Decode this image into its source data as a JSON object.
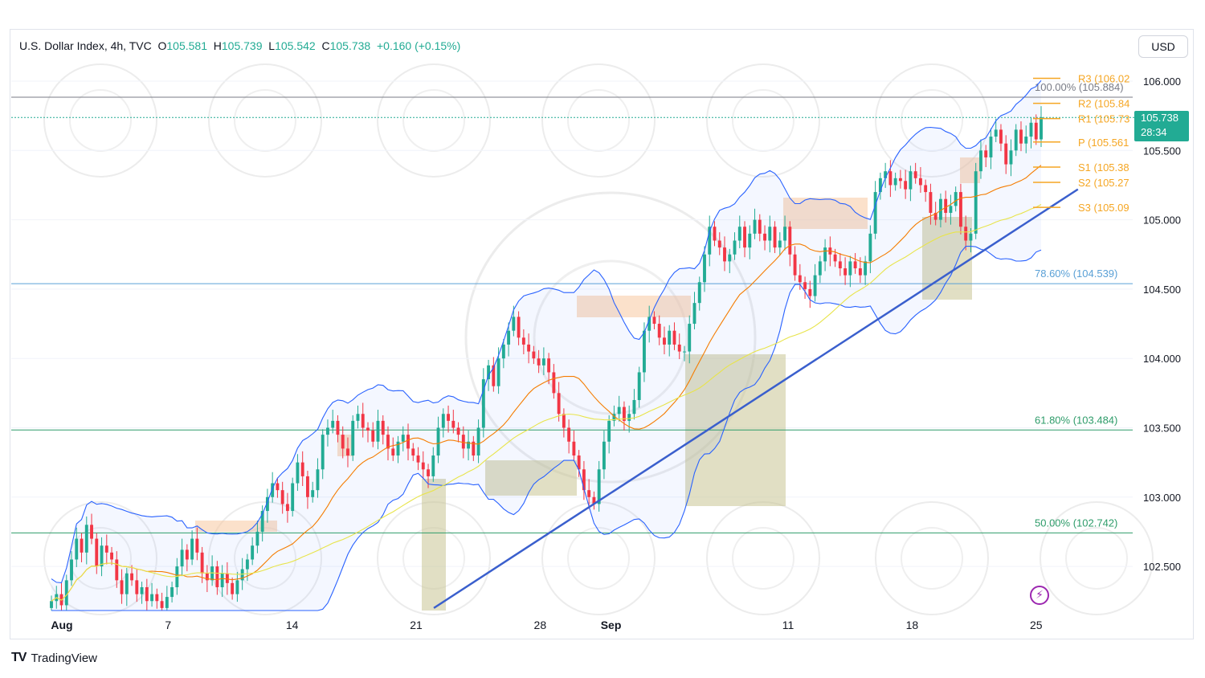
{
  "legend": {
    "symbol": "U.S. Dollar Index, 4h, TVC",
    "open_label": "O",
    "open": "105.581",
    "high_label": "H",
    "high": "105.739",
    "low_label": "L",
    "low": "105.542",
    "close_label": "C",
    "close": "105.738",
    "change": "+0.160 (+0.15%)"
  },
  "currency": "USD",
  "price_tag": {
    "price": "105.738",
    "countdown": "28:34"
  },
  "brand": {
    "logo": "TV",
    "name": "TradingView"
  },
  "colors": {
    "up": "#22ab94",
    "down": "#f23645",
    "bollinger": "#2962ff",
    "sma_orange": "#f57c00",
    "sma_yellow": "#e8e44a",
    "trend": "#3a5fcd",
    "fib_blue": "#5aa0d6",
    "fib_green": "#2e9c6a",
    "pivot": "#f5a623"
  },
  "icons": {
    "flash": "lightning-icon"
  },
  "chart_data": {
    "type": "candlestick",
    "title": "",
    "ylim": [
      102.2,
      106.2
    ],
    "y_ticks": [
      {
        "value": 106.0,
        "label": "106.000"
      },
      {
        "value": 105.5,
        "label": "105.500"
      },
      {
        "value": 105.0,
        "label": "105.000"
      },
      {
        "value": 104.5,
        "label": "104.500"
      },
      {
        "value": 104.0,
        "label": "104.000"
      },
      {
        "value": 103.5,
        "label": "103.500"
      },
      {
        "value": 103.0,
        "label": "103.000"
      },
      {
        "value": 102.5,
        "label": "102.500"
      }
    ],
    "x_ticks": [
      {
        "date": "2023-08-01",
        "label": "Aug",
        "bold": true
      },
      {
        "date": "2023-08-07",
        "label": "7",
        "bold": false
      },
      {
        "date": "2023-08-14",
        "label": "14",
        "bold": false
      },
      {
        "date": "2023-08-21",
        "label": "21",
        "bold": false
      },
      {
        "date": "2023-08-28",
        "label": "28",
        "bold": false
      },
      {
        "date": "2023-09-01",
        "label": "Sep",
        "bold": true
      },
      {
        "date": "2023-09-11",
        "label": "11",
        "bold": false
      },
      {
        "date": "2023-09-18",
        "label": "18",
        "bold": false
      },
      {
        "date": "2023-09-25",
        "label": "25",
        "bold": false
      }
    ],
    "fibonacci": [
      {
        "label": "100.00% (105.884)",
        "value": 105.884
      },
      {
        "label": "78.60% (104.539)",
        "value": 104.539
      },
      {
        "label": "61.80% (103.484)",
        "value": 103.484
      },
      {
        "label": "50.00% (102.742)",
        "value": 102.742
      }
    ],
    "pivots": [
      {
        "label": "R3 (106.02",
        "value": 106.02
      },
      {
        "label": "R2 (105.84",
        "value": 105.84
      },
      {
        "label": "R1 (105.73",
        "value": 105.73
      },
      {
        "label": "P (105.561",
        "value": 105.561
      },
      {
        "label": "S1 (105.38",
        "value": 105.38
      },
      {
        "label": "S2 (105.27",
        "value": 105.27
      },
      {
        "label": "S3 (105.09",
        "value": 105.09
      }
    ],
    "trendline": [
      {
        "date": "2023-08-22",
        "value": 102.2
      },
      {
        "date": "2023-09-26",
        "value": 105.22
      }
    ],
    "closes": [
      102.25,
      102.3,
      102.22,
      102.4,
      102.55,
      102.7,
      102.6,
      102.8,
      102.7,
      102.5,
      102.65,
      102.6,
      102.55,
      102.4,
      102.3,
      102.45,
      102.4,
      102.3,
      102.35,
      102.25,
      102.3,
      102.25,
      102.2,
      102.28,
      102.35,
      102.5,
      102.62,
      102.55,
      102.7,
      102.6,
      102.45,
      102.4,
      102.5,
      102.35,
      102.45,
      102.38,
      102.3,
      102.4,
      102.48,
      102.55,
      102.65,
      102.75,
      102.9,
      103.0,
      103.1,
      103.05,
      102.95,
      102.9,
      103.1,
      103.25,
      103.15,
      103.0,
      103.05,
      103.2,
      103.45,
      103.5,
      103.55,
      103.45,
      103.35,
      103.3,
      103.55,
      103.6,
      103.5,
      103.48,
      103.4,
      103.55,
      103.45,
      103.35,
      103.3,
      103.4,
      103.45,
      103.35,
      103.3,
      103.25,
      103.2,
      103.15,
      103.3,
      103.5,
      103.6,
      103.55,
      103.5,
      103.45,
      103.35,
      103.4,
      103.3,
      103.5,
      103.85,
      103.95,
      103.8,
      104.0,
      104.1,
      104.2,
      104.3,
      104.15,
      104.1,
      104.05,
      104.0,
      103.95,
      104.0,
      103.9,
      103.75,
      103.6,
      103.5,
      103.4,
      103.3,
      103.2,
      103.05,
      103.0,
      102.95,
      103.2,
      103.4,
      103.55,
      103.6,
      103.65,
      103.55,
      103.6,
      103.7,
      103.9,
      104.2,
      104.3,
      104.25,
      104.15,
      104.1,
      104.2,
      104.1,
      104.05,
      104.05,
      104.25,
      104.4,
      104.55,
      104.75,
      104.95,
      104.85,
      104.8,
      104.7,
      104.75,
      104.85,
      104.95,
      104.8,
      104.9,
      105.0,
      104.9,
      104.85,
      104.95,
      104.8,
      104.85,
      104.95,
      104.75,
      104.6,
      104.55,
      104.5,
      104.45,
      104.6,
      104.7,
      104.8,
      104.75,
      104.7,
      104.65,
      104.6,
      104.7,
      104.65,
      104.6,
      104.7,
      104.9,
      105.2,
      105.3,
      105.35,
      105.25,
      105.3,
      105.28,
      105.22,
      105.35,
      105.3,
      105.25,
      105.2,
      105.05,
      105.0,
      105.15,
      105.05,
      105.1,
      105.2,
      104.95,
      104.85,
      104.9,
      105.35,
      105.5,
      105.45,
      105.6,
      105.65,
      105.55,
      105.4,
      105.5,
      105.65,
      105.55,
      105.6,
      105.7,
      105.58,
      105.74
    ]
  }
}
